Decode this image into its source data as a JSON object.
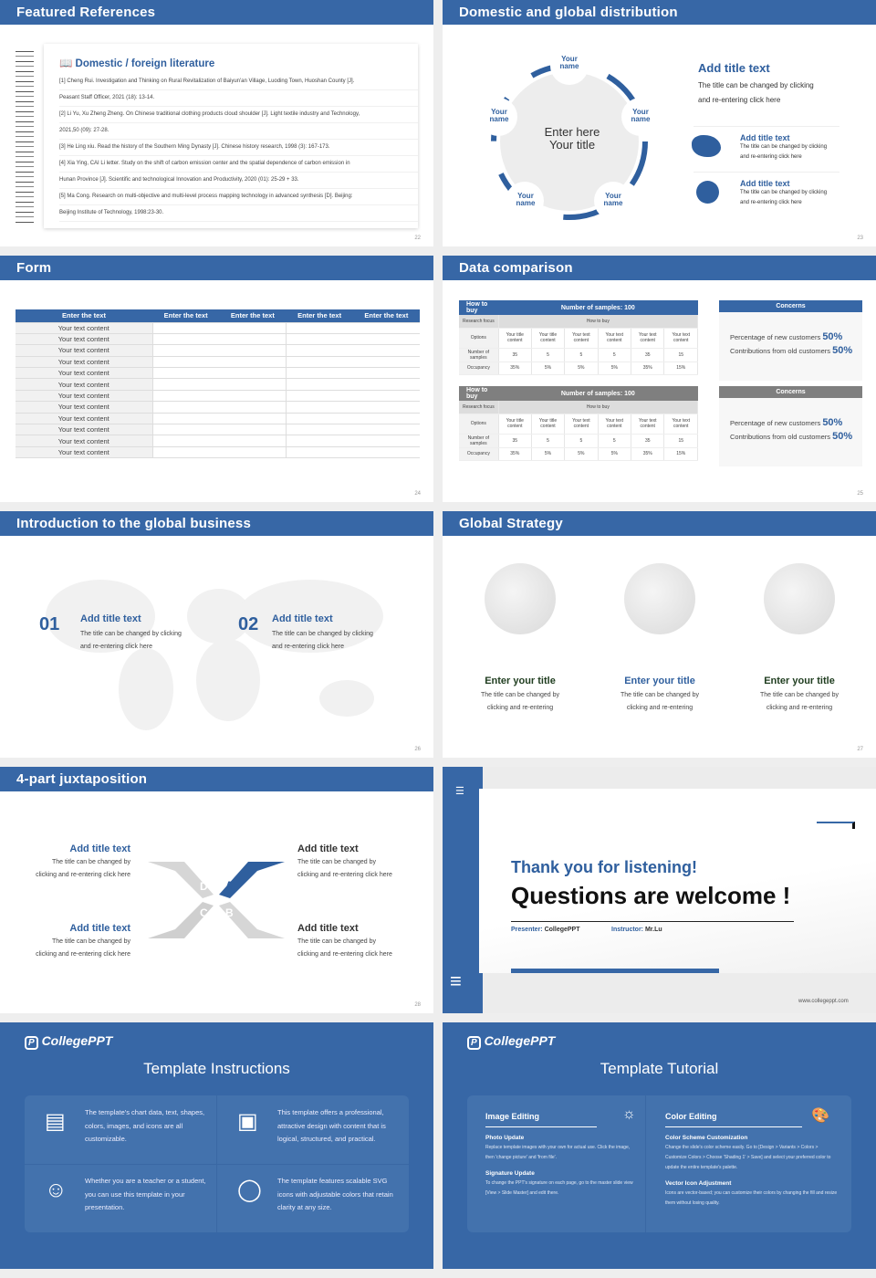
{
  "colors": {
    "primary": "#3767a6",
    "grey_header": "#7f7f7f",
    "panel": "#4372ad"
  },
  "s22": {
    "header": "Featured References",
    "title": "Domestic / foreign literature",
    "icon": "book-icon",
    "page": "22",
    "refs": [
      "[1] Cheng Rui. Investigation and Thinking on Rural Revitalization of Baiyun'an Village, Luoding Town, Huoshan County [J].",
      "Peasant Staff Officer, 2021 (18): 13-14.",
      "[2] Li Yu, Xu Zheng Zheng. On Chinese traditional clothing products cloud shoulder [J]. Light textile industry and Technology,",
      "2021,50 (09): 27-28.",
      "[3] He Ling xiu. Read the history of the Southern Ming Dynasty [J]. Chinese history research, 1998 (3): 167-173.",
      "[4] Xia Ying, CAI Li letter. Study on the shift of carbon emission center and the spatial dependence of carbon emission in",
      "Hunan Province [J]. Scientific and technological Innovation and Productivity, 2020 (01): 25-29 + 33.",
      "[5] Ma Cong. Research on multi-objective and multi-level process mapping technology in advanced synthesis [D]. Beijing:",
      "Beijing Institute of Technology, 1998:23-30."
    ]
  },
  "s23": {
    "header": "Domestic and global distribution",
    "center": [
      "Enter here",
      "Your title"
    ],
    "names": [
      "Your name",
      "Your name",
      "Your name",
      "Your name",
      "Your name"
    ],
    "main_title": "Add title text",
    "main_body": [
      "The title can be changed by clicking",
      "and re-entering click here"
    ],
    "items": [
      {
        "icon": "china-map-icon",
        "title": "Add title text",
        "body": [
          "The title can be changed by clicking",
          "and re-entering click here"
        ]
      },
      {
        "icon": "globe-icon",
        "title": "Add title text",
        "body": [
          "The title can be changed by clicking",
          "and re-entering click here"
        ]
      }
    ],
    "page": "23"
  },
  "s24": {
    "header": "Form",
    "columns": [
      "Enter the text",
      "Enter the text",
      "Enter the text",
      "Enter the text",
      "Enter the text"
    ],
    "rows": [
      "Your text content",
      "Your text content",
      "Your text content",
      "Your text content",
      "Your text content",
      "Your text content",
      "Your text content",
      "Your text content",
      "Your text content",
      "Your text content",
      "Your text content",
      "Your text content"
    ],
    "page": "24"
  },
  "s25": {
    "header": "Data comparison",
    "page": "25",
    "tables": [
      {
        "h1": "How to buy",
        "h2": "Number of samples: 100",
        "rf_label": "Research focus",
        "rf_value": "How to buy",
        "options_label": "Options",
        "options": [
          "Your title content",
          "Your title content",
          "Your text content",
          "Your text content",
          "Your text content",
          "Your text content"
        ],
        "samples_label": "Number of samples",
        "samples": [
          "35",
          "5",
          "5",
          "5",
          "35",
          "15"
        ],
        "occ_label": "Occupancy",
        "occ": [
          "35%",
          "5%",
          "5%",
          "5%",
          "35%",
          "15%"
        ]
      },
      {
        "h1": "How to buy",
        "h2": "Number of samples: 100",
        "rf_label": "Research focus",
        "rf_value": "How to buy",
        "options_label": "Options",
        "options": [
          "Your title content",
          "Your title content",
          "Your text content",
          "Your text content",
          "Your text content",
          "Your text content"
        ],
        "samples_label": "Number of samples",
        "samples": [
          "35",
          "5",
          "5",
          "5",
          "35",
          "15"
        ],
        "occ_label": "Occupancy",
        "occ": [
          "35%",
          "5%",
          "5%",
          "5%",
          "35%",
          "15%"
        ]
      }
    ],
    "concerns": [
      {
        "title": "Concerns",
        "l1": "Percentage of new customers",
        "v1": "50%",
        "l2": "Contributions from old customers",
        "v2": "50%"
      },
      {
        "title": "Concerns",
        "l1": "Percentage of new customers",
        "v1": "50%",
        "l2": "Contributions from old customers",
        "v2": "50%"
      }
    ]
  },
  "s26": {
    "header": "Introduction to the global business",
    "page": "26",
    "items": [
      {
        "num": "01",
        "title": "Add title text",
        "body": [
          "The title can be changed by clicking",
          "and re-entering click here"
        ]
      },
      {
        "num": "02",
        "title": "Add title text",
        "body": [
          "The title can be changed by clicking",
          "and re-entering click here"
        ]
      }
    ]
  },
  "s27": {
    "header": "Global Strategy",
    "page": "27",
    "items": [
      {
        "title": "Enter your title",
        "body": [
          "The title can be changed by",
          "clicking and re-entering"
        ]
      },
      {
        "title": "Enter your title",
        "body": [
          "The title can be changed by",
          "clicking and re-entering"
        ]
      },
      {
        "title": "Enter your title",
        "body": [
          "The title can be changed by",
          "clicking and re-entering"
        ]
      }
    ]
  },
  "s28": {
    "header": "4-part juxtaposition",
    "page": "28",
    "letters": [
      "D",
      "A",
      "C",
      "B"
    ],
    "items": [
      {
        "title": "Add title text",
        "body": [
          "The title can be changed by",
          "clicking and re-entering click here"
        ]
      },
      {
        "title": "Add title text",
        "body": [
          "The title can be changed by",
          "clicking and re-entering click here"
        ]
      },
      {
        "title": "Add title text",
        "body": [
          "The title can be changed by",
          "clicking and re-entering click here"
        ]
      },
      {
        "title": "Add title text",
        "body": [
          "The title can be changed by",
          "clicking and re-entering click here"
        ]
      }
    ]
  },
  "s29": {
    "thanks": "Thank you for listening!",
    "questions": "Questions are welcome !",
    "presenter_label": "Presenter:",
    "presenter": "CollegePPT",
    "instructor_label": "Instructor:",
    "instructor": "Mr.Lu",
    "website": "www.collegeppt.com"
  },
  "s30": {
    "logo": "CollegePPT",
    "title": "Template Instructions",
    "cells": [
      {
        "icon": "document-icon",
        "text": "The template's chart data, text, shapes, colors, images, and icons are all customizable."
      },
      {
        "icon": "jar-icon",
        "text": "This template offers a professional, attractive design with content that is logical, structured, and practical."
      },
      {
        "icon": "presenter-icon",
        "text": "Whether you are a teacher or a student, you can use this template in your presentation."
      },
      {
        "icon": "ball-icon",
        "text": "The template features scalable SVG icons with adjustable colors that retain clarity at any size."
      }
    ]
  },
  "s31": {
    "logo": "CollegePPT",
    "title": "Template Tutorial",
    "image_editing": {
      "title": "Image Editing",
      "icon": "lightbulb-icon",
      "sub1": "Photo Update",
      "body1": "Replace template images with your own for actual use. Click the image, then 'change picture' and 'from file'.",
      "sub2": "Signature Update",
      "body2": "To change the PPT's signature on each page, go to the master slide view [View > Slide Master] and edit there."
    },
    "color_editing": {
      "title": "Color Editing",
      "icon": "palette-icon",
      "sub1": "Color Scheme Customization",
      "body1": "Change the slide's color scheme easily. Go to [Design > Variants > Colors > Customize Colors > Choose 'Shading 1' > Save] and select your preferred color to update the entire template's palette.",
      "sub2": "Vector Icon Adjustment",
      "body2": "Icons are vector-based; you can customize their colors by changing the fill and resize them without losing quality."
    }
  }
}
